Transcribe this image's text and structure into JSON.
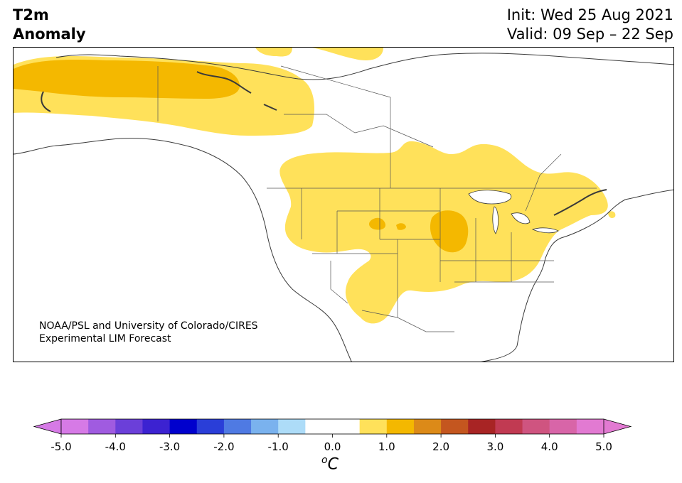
{
  "title": {
    "line1": "T2m",
    "line2": "Anomaly",
    "init": "Init: Wed 25 Aug 2021",
    "valid": "Valid: 09 Sep – 22 Sep"
  },
  "credit": {
    "line1": "NOAA/PSL and University of Colorado/CIRES",
    "line2": "Experimental LIM Forecast"
  },
  "colorbar": {
    "unit_base": "C",
    "unit_prefix": "o",
    "ticks": [
      "-5.0",
      "-4.0",
      "-3.0",
      "-2.0",
      "-1.0",
      "0.0",
      "1.0",
      "2.0",
      "3.0",
      "4.0",
      "5.0"
    ],
    "tick_values": [
      -5,
      -4,
      -3,
      -2,
      -1,
      0,
      1,
      2,
      3,
      4,
      5
    ],
    "bins": [
      {
        "lo": -5.0,
        "hi": -4.5,
        "color": "#d67ae6"
      },
      {
        "lo": -4.5,
        "hi": -4.0,
        "color": "#a05be0"
      },
      {
        "lo": -4.0,
        "hi": -3.5,
        "color": "#6b3fd9"
      },
      {
        "lo": -3.5,
        "hi": -3.0,
        "color": "#3c22d1"
      },
      {
        "lo": -3.0,
        "hi": -2.5,
        "color": "#0000cd"
      },
      {
        "lo": -2.5,
        "hi": -2.0,
        "color": "#2a3ed8"
      },
      {
        "lo": -2.0,
        "hi": -1.5,
        "color": "#4f7ae3"
      },
      {
        "lo": -1.5,
        "hi": -1.0,
        "color": "#7ab2ee"
      },
      {
        "lo": -1.0,
        "hi": -0.5,
        "color": "#addcf8"
      },
      {
        "lo": -0.5,
        "hi": 0.5,
        "color": "#ffffff"
      },
      {
        "lo": 0.5,
        "hi": 1.0,
        "color": "#ffe15a"
      },
      {
        "lo": 1.0,
        "hi": 1.5,
        "color": "#f4b800"
      },
      {
        "lo": 1.5,
        "hi": 2.0,
        "color": "#dc8a18"
      },
      {
        "lo": 2.0,
        "hi": 2.5,
        "color": "#c4561f"
      },
      {
        "lo": 2.5,
        "hi": 3.0,
        "color": "#a82424"
      },
      {
        "lo": 3.0,
        "hi": 3.5,
        "color": "#c13a52"
      },
      {
        "lo": 3.5,
        "hi": 4.0,
        "color": "#cf5480"
      },
      {
        "lo": 4.0,
        "hi": 4.5,
        "color": "#d865a8"
      },
      {
        "lo": 4.5,
        "hi": 5.0,
        "color": "#e27ad2"
      }
    ],
    "extend_low_color": "#d67ae6",
    "extend_high_color": "#e27ad2"
  },
  "map": {
    "anomaly_colors": {
      "weak": "#ffe15a",
      "moderate": "#f4b800",
      "strong": "#e5a300"
    },
    "land_outline": "#3a3a3a",
    "border_color": "#555555"
  }
}
